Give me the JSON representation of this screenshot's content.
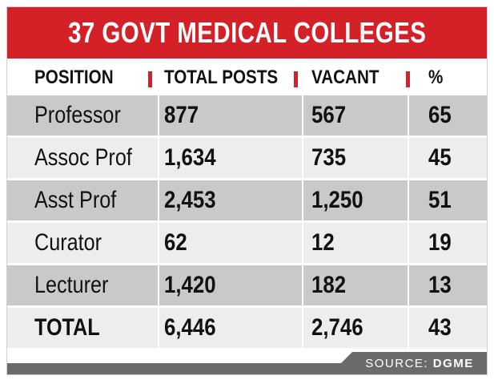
{
  "title": "37 GOVT MEDICAL COLLEGES",
  "headers": [
    "POSITION",
    "TOTAL POSTS",
    "VACANT",
    "%"
  ],
  "source_label": "SOURCE:",
  "source_name": "DGME",
  "colors": {
    "accent": "#d42027",
    "row_dark": "#c9c9cb",
    "row_light": "#ededee",
    "footer": "#6b6b6e"
  },
  "chart_data": {
    "type": "table",
    "title": "37 GOVT MEDICAL COLLEGES",
    "columns": [
      "POSITION",
      "TOTAL POSTS",
      "VACANT",
      "%"
    ],
    "rows": [
      [
        "Professor",
        "877",
        "567",
        "65"
      ],
      [
        "Assoc Prof",
        "1,634",
        "735",
        "45"
      ],
      [
        "Asst Prof",
        "2,453",
        "1,250",
        "51"
      ],
      [
        "Curator",
        "62",
        "12",
        "19"
      ],
      [
        "Lecturer",
        "1,420",
        "182",
        "13"
      ],
      [
        "TOTAL",
        "6,446",
        "2,746",
        "43"
      ]
    ],
    "source": "SOURCE: DGME"
  }
}
